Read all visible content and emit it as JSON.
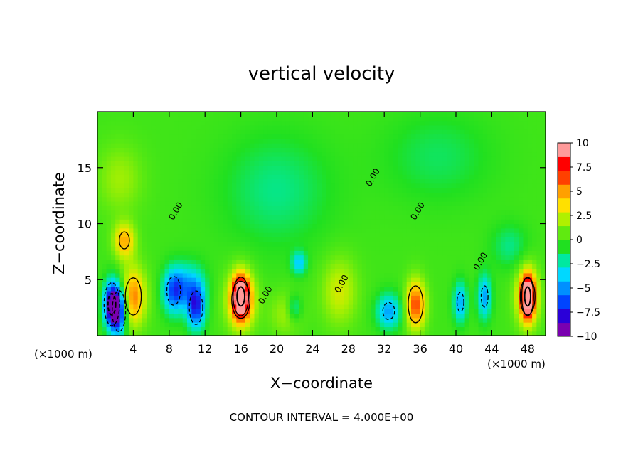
{
  "chart_data": {
    "type": "heatmap",
    "title": "vertical velocity",
    "xlabel": "X−coordinate",
    "ylabel": "Z−coordinate",
    "x_unit_left": "(×1000 m)",
    "x_unit_right": "(×1000 m)",
    "footer": "CONTOUR INTERVAL = 4.000E+00",
    "xlim": [
      0,
      50
    ],
    "ylim": [
      0,
      20
    ],
    "x_ticks": [
      4,
      8,
      12,
      16,
      20,
      24,
      28,
      32,
      36,
      40,
      44,
      48
    ],
    "y_ticks": [
      5,
      10,
      15
    ],
    "contour_interval": 4.0,
    "contour_label": "0.00",
    "colorbar": {
      "range": [
        -10,
        10
      ],
      "ticks": [
        "10",
        "7.5",
        "5",
        "2.5",
        "0",
        "−2.5",
        "−5",
        "−7.5",
        "−10"
      ],
      "colors": [
        "#7a00b0",
        "#2a00d8",
        "#0044ff",
        "#0090ff",
        "#00d8ff",
        "#00e8a0",
        "#20e020",
        "#60ea10",
        "#b0f000",
        "#ffe000",
        "#ffa000",
        "#ff4000",
        "#ff0000",
        "#ff9a9a"
      ]
    },
    "background_value": 0,
    "features": [
      {
        "x": 1.6,
        "z": 2.8,
        "value": -10,
        "sx": 0.9,
        "sz": 2.0
      },
      {
        "x": 2.4,
        "z": 2.2,
        "value": -8,
        "sx": 0.9,
        "sz": 2.2
      },
      {
        "x": 4.0,
        "z": 3.5,
        "value": 6,
        "sx": 1.4,
        "sz": 2.6
      },
      {
        "x": 3.0,
        "z": 8.5,
        "value": 5,
        "sx": 1.2,
        "sz": 1.6
      },
      {
        "x": 8.5,
        "z": 4.0,
        "value": -6,
        "sx": 1.2,
        "sz": 2.0
      },
      {
        "x": 11.0,
        "z": 2.5,
        "value": -7,
        "sx": 1.0,
        "sz": 2.0
      },
      {
        "x": 10.2,
        "z": 4.5,
        "value": -4,
        "sx": 1.8,
        "sz": 2.0
      },
      {
        "x": 16.0,
        "z": 3.5,
        "value": 10,
        "sx": 0.9,
        "sz": 1.8
      },
      {
        "x": 16.0,
        "z": 3.2,
        "value": 6,
        "sx": 1.6,
        "sz": 2.6
      },
      {
        "x": 21.0,
        "z": 2.0,
        "value": 2,
        "sx": 1.8,
        "sz": 2.0
      },
      {
        "x": 22.5,
        "z": 6.5,
        "value": -4,
        "sx": 0.8,
        "sz": 1.0
      },
      {
        "x": 22.0,
        "z": 2.5,
        "value": -3,
        "sx": 0.8,
        "sz": 1.2
      },
      {
        "x": 27.0,
        "z": 4.0,
        "value": 3,
        "sx": 2.0,
        "sz": 3.0
      },
      {
        "x": 32.5,
        "z": 2.2,
        "value": -5,
        "sx": 1.4,
        "sz": 1.6
      },
      {
        "x": 35.5,
        "z": 2.8,
        "value": 7,
        "sx": 1.1,
        "sz": 2.2
      },
      {
        "x": 40.5,
        "z": 3.0,
        "value": -5,
        "sx": 0.8,
        "sz": 1.8
      },
      {
        "x": 43.2,
        "z": 3.5,
        "value": -5,
        "sx": 0.8,
        "sz": 2.0
      },
      {
        "x": 48.0,
        "z": 3.5,
        "value": 10,
        "sx": 0.7,
        "sz": 1.8
      },
      {
        "x": 48.0,
        "z": 3.5,
        "value": 6,
        "sx": 1.3,
        "sz": 2.6
      },
      {
        "x": 2.5,
        "z": 14.0,
        "value": 2,
        "sx": 2.5,
        "sz": 3.0
      },
      {
        "x": 20.0,
        "z": 13.0,
        "value": -2,
        "sx": 6.0,
        "sz": 5.0
      },
      {
        "x": 38.0,
        "z": 16.0,
        "value": -1.5,
        "sx": 6.0,
        "sz": 4.0
      },
      {
        "x": 46.0,
        "z": 8.0,
        "value": -2,
        "sx": 2.0,
        "sz": 2.0
      }
    ]
  }
}
